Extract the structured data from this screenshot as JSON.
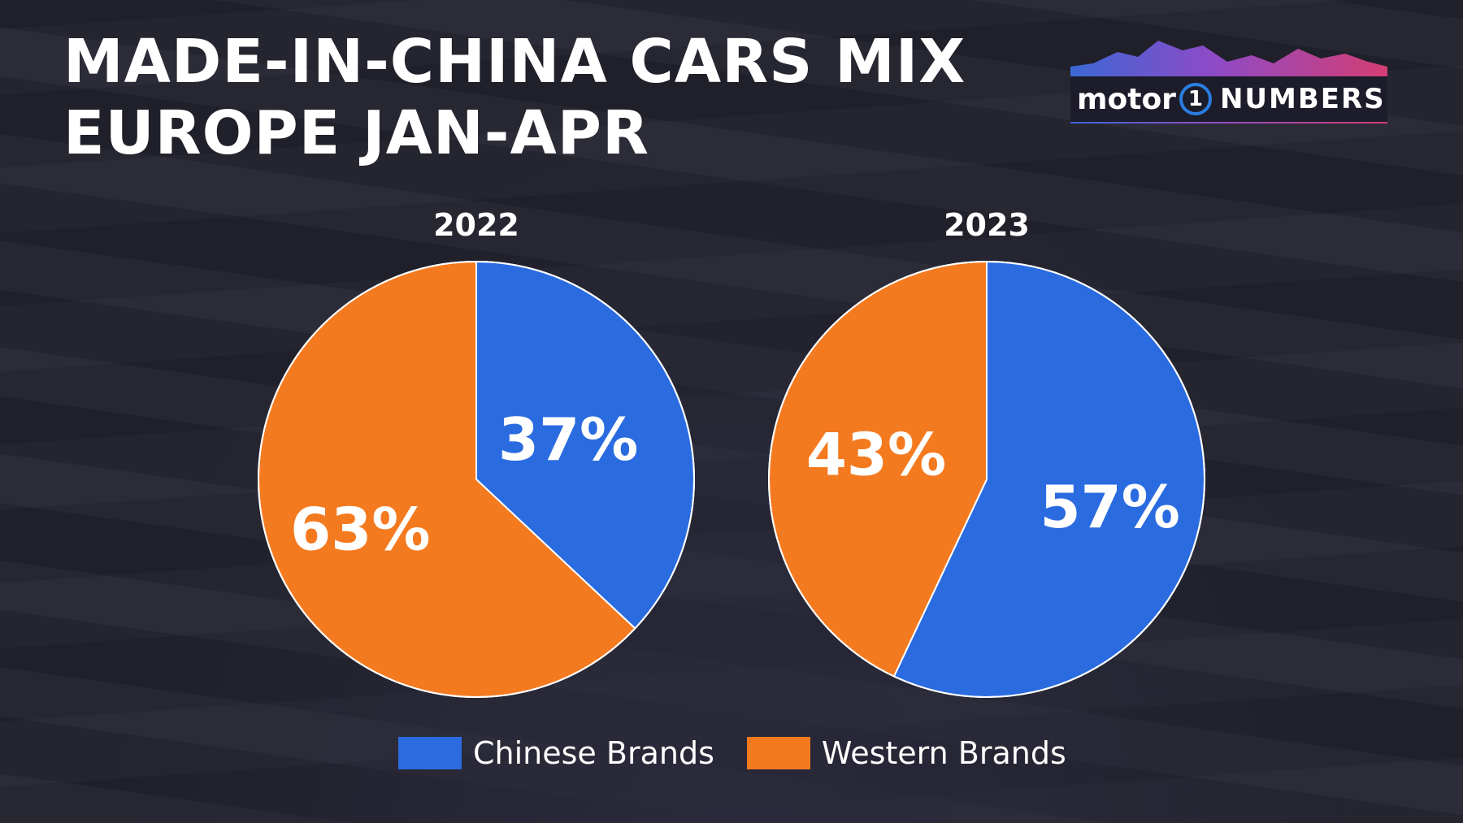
{
  "title": {
    "line1": "MADE-IN-CHINA CARS MIX",
    "line2": "EUROPE JAN-APR"
  },
  "logo": {
    "brand": "motor",
    "one": "1",
    "numbers": "NUMBERS"
  },
  "colors": {
    "chinese": "#2a6be0",
    "western": "#f47a20",
    "background": "#23232f"
  },
  "chart_data": [
    {
      "type": "pie",
      "title": "2022",
      "categories": [
        "Chinese Brands",
        "Western Brands"
      ],
      "values": [
        37,
        63
      ],
      "labels": [
        "37%",
        "63%"
      ]
    },
    {
      "type": "pie",
      "title": "2023",
      "categories": [
        "Chinese Brands",
        "Western Brands"
      ],
      "values": [
        57,
        43
      ],
      "labels": [
        "57%",
        "43%"
      ]
    }
  ],
  "legend": [
    {
      "label": "Chinese Brands",
      "color": "#2a6be0"
    },
    {
      "label": "Western Brands",
      "color": "#f47a20"
    }
  ]
}
